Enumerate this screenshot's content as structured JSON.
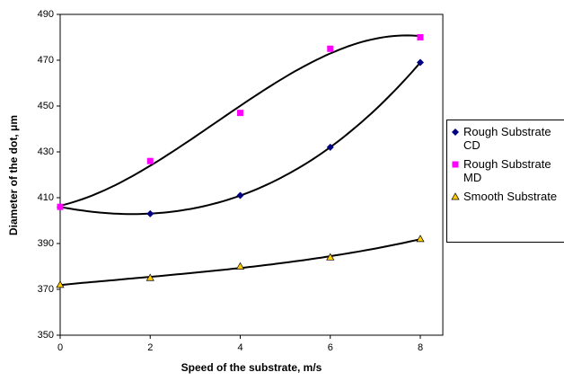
{
  "chart_data": {
    "type": "scatter",
    "xlabel": "Speed of the substrate, m/s",
    "ylabel": "Diameter of the dot, μm",
    "x": [
      0,
      2,
      4,
      6,
      8
    ],
    "series": [
      {
        "name": "Rough Substrate CD",
        "color": "#000080",
        "marker": "diamond",
        "values": [
          406,
          403,
          411,
          432,
          469
        ]
      },
      {
        "name": "Rough Substrate MD",
        "color": "#ff00ff",
        "marker": "square",
        "values": [
          406,
          426,
          447,
          475,
          480
        ]
      },
      {
        "name": "Smooth Substrate",
        "color": "#ffcc00",
        "marker": "triangle",
        "values": [
          372,
          375,
          380,
          384,
          392
        ]
      }
    ],
    "xlim": [
      0,
      8.5
    ],
    "xticks": [
      0,
      2,
      4,
      6,
      8
    ],
    "ylim": [
      350,
      490
    ],
    "yticks": [
      350,
      370,
      390,
      410,
      430,
      450,
      470,
      490
    ],
    "grid": false
  }
}
